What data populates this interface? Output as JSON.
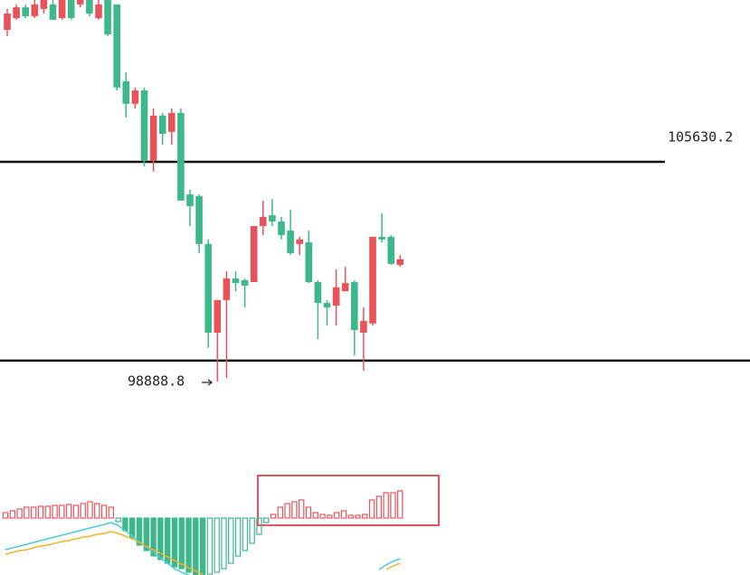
{
  "chart_data": [
    {
      "type": "candlestick",
      "up_color": "#e8525a",
      "down_color": "#3cb88b",
      "open": [
        109680,
        110040,
        110370,
        110100,
        110320,
        110460,
        110040,
        110600,
        110460,
        110600,
        110040,
        110600,
        110460,
        108100,
        107410,
        107820,
        105660,
        107050,
        106550,
        107130,
        104630,
        104580,
        103110,
        100390,
        101390,
        102050,
        102000,
        101940,
        103660,
        103990,
        103800,
        103520,
        103110,
        103160,
        101940,
        101300,
        101220,
        101660,
        101940,
        100390,
        100670,
        103330,
        103330,
        102470
      ],
      "high": [
        110320,
        110460,
        110460,
        110600,
        110600,
        110600,
        110600,
        110600,
        110600,
        110600,
        110600,
        110600,
        110460,
        108380,
        107910,
        107910,
        107270,
        107130,
        107270,
        107270,
        104770,
        104630,
        103250,
        101390,
        102270,
        102270,
        102050,
        103660,
        104440,
        104490,
        103940,
        104160,
        103330,
        103520,
        102000,
        101390,
        102330,
        102410,
        102000,
        101160,
        103330,
        104050,
        103380,
        102770
      ],
      "low": [
        109490,
        109990,
        110040,
        110040,
        110180,
        109990,
        109990,
        109990,
        110370,
        110100,
        109990,
        109490,
        107820,
        106990,
        107270,
        105490,
        105330,
        106160,
        106160,
        104440,
        103660,
        102830,
        99920,
        98888.8,
        99000,
        101660,
        101160,
        101940,
        103380,
        103660,
        103250,
        102770,
        102770,
        101910,
        100190,
        100610,
        100610,
        101660,
        99690,
        99220,
        100610,
        103160,
        102470,
        102410
      ],
      "close": [
        110180,
        110370,
        110100,
        110460,
        110600,
        109990,
        110600,
        110040,
        110600,
        110180,
        110460,
        109540,
        107910,
        107410,
        107820,
        105660,
        107050,
        106490,
        107130,
        104440,
        104270,
        103110,
        100390,
        101390,
        102050,
        101910,
        101830,
        103660,
        103940,
        103800,
        103380,
        102830,
        103250,
        101940,
        101300,
        101160,
        101780,
        101910,
        100470,
        100750,
        103330,
        103250,
        102500,
        102640
      ],
      "resistance": 105630.2,
      "support": 99530,
      "low_annotation": 98888.8
    },
    {
      "type": "macd",
      "histogram": [
        6,
        8,
        10,
        12,
        12,
        13,
        13,
        14,
        14,
        15,
        14,
        16,
        18,
        16,
        14,
        12,
        -4,
        -14,
        -22,
        -30,
        -36,
        -42,
        -46,
        -50,
        -54,
        -56,
        -60,
        -64,
        -64,
        -62,
        -60,
        -56,
        -50,
        -42,
        -36,
        -28,
        -18,
        -5,
        4,
        12,
        16,
        18,
        20,
        12,
        6,
        4,
        3,
        6,
        8,
        3,
        3,
        4,
        20,
        24,
        28,
        28,
        30
      ],
      "dif": [
        -35,
        -33,
        -31,
        -29,
        -27,
        -25,
        -23,
        -21,
        -19,
        -17,
        -15,
        -13,
        -11,
        -9,
        -7,
        -5,
        -8,
        -14,
        -20,
        -26,
        -32,
        -38,
        -44,
        -50,
        -56,
        -60,
        -63,
        -66,
        null,
        null,
        null,
        null,
        null,
        null,
        null,
        null,
        null,
        null,
        null,
        null,
        null,
        null,
        null,
        null,
        null,
        null,
        null,
        null,
        null,
        null,
        null,
        null,
        null,
        -57,
        -52,
        -48,
        -45
      ],
      "dea": [
        -40,
        -38,
        -36,
        -35,
        -33,
        -31,
        -30,
        -28,
        -26,
        -25,
        -23,
        -21,
        -20,
        -18,
        -17,
        -15,
        -17,
        -20,
        -23,
        -27,
        -31,
        -35,
        -39,
        -43,
        -47,
        -51,
        -55,
        -59,
        -62,
        null,
        null,
        null,
        null,
        null,
        null,
        null,
        null,
        null,
        null,
        null,
        null,
        null,
        null,
        null,
        null,
        null,
        null,
        null,
        null,
        null,
        null,
        null,
        null,
        null,
        -57,
        -53,
        -50
      ],
      "pos_color": "#e8525a",
      "neg_color": "#3cb88b",
      "dif_color": "#4cc9d6",
      "dea_color": "#f0b429"
    }
  ]
}
